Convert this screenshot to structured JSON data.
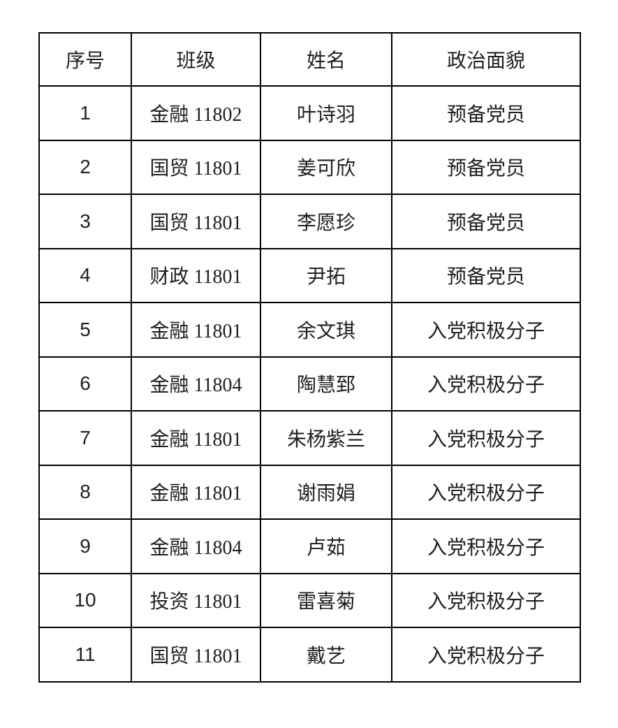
{
  "table": {
    "columns": [
      "序号",
      "班级",
      "姓名",
      "政治面貌"
    ],
    "rows": [
      {
        "no": "1",
        "class": "金融 11802",
        "name": "叶诗羽",
        "status": "预备党员"
      },
      {
        "no": "2",
        "class": "国贸 11801",
        "name": "姜可欣",
        "status": "预备党员"
      },
      {
        "no": "3",
        "class": "国贸 11801",
        "name": "李愿珍",
        "status": "预备党员"
      },
      {
        "no": "4",
        "class": "财政 11801",
        "name": "尹拓",
        "status": "预备党员"
      },
      {
        "no": "5",
        "class": "金融 11801",
        "name": "余文琪",
        "status": "入党积极分子"
      },
      {
        "no": "6",
        "class": "金融 11804",
        "name": "陶慧郅",
        "status": "入党积极分子"
      },
      {
        "no": "7",
        "class": "金融 11801",
        "name": "朱杨紫兰",
        "status": "入党积极分子"
      },
      {
        "no": "8",
        "class": "金融 11801",
        "name": "谢雨娟",
        "status": "入党积极分子"
      },
      {
        "no": "9",
        "class": "金融 11804",
        "name": "卢茹",
        "status": "入党积极分子"
      },
      {
        "no": "10",
        "class": "投资 11801",
        "name": "雷喜菊",
        "status": "入党积极分子"
      },
      {
        "no": "11",
        "class": "国贸 11801",
        "name": "戴艺",
        "status": "入党积极分子"
      }
    ],
    "colors": {
      "border": "#000000",
      "text": "#1f1f1f",
      "background": "#ffffff"
    }
  }
}
